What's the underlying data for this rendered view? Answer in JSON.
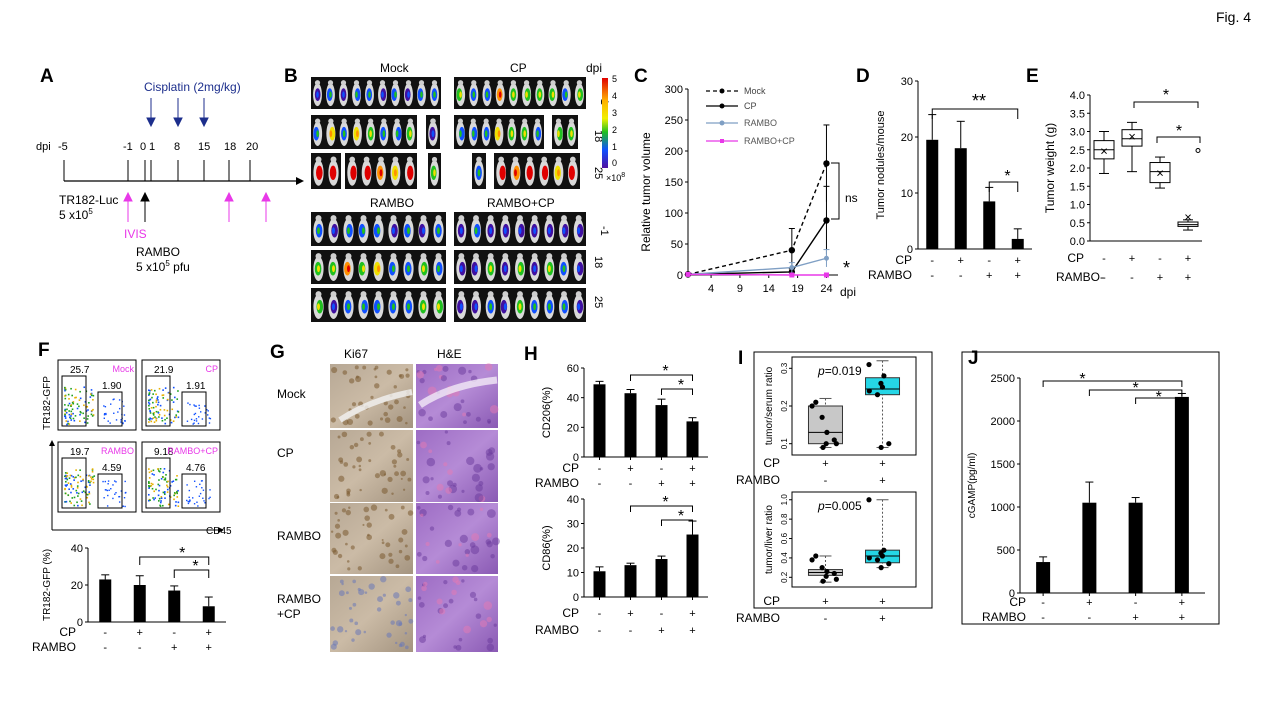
{
  "figure_label": "Fig. 4",
  "colors": {
    "magenta": "#e838e8",
    "navy": "#1c2e8c",
    "cyan": "#25d6e6",
    "gray_box": "#c8c8c8",
    "steel": "#7f9fc4"
  },
  "panelA": {
    "label": "A",
    "dpi_label": "dpi",
    "ticks": [
      "-5",
      "-1",
      "0",
      "1",
      "8",
      "15",
      "18",
      "20"
    ],
    "cisplatin": "Cisplatin (2mg/kg)",
    "tumor": "TR182-Luc",
    "tumor_dose": "5 x10",
    "tumor_dose_exp": "5",
    "ivis": "IVIS",
    "virus": "RAMBO",
    "virus_dose": "5 x10",
    "virus_dose_exp": "5",
    "virus_unit": " pfu"
  },
  "panelB": {
    "label": "B",
    "groups": [
      "Mock",
      "CP",
      "RAMBO",
      "RAMBO+CP"
    ],
    "dpi_label": "dpi",
    "row_days": [
      "-1",
      "18",
      "25"
    ],
    "scale_ticks": [
      "5",
      "4",
      "3",
      "2",
      "1",
      "0"
    ],
    "scale_unit": "×10",
    "scale_unit_exp": "8"
  },
  "panelC": {
    "label": "C",
    "chart_data": {
      "type": "line",
      "ylabel": "Relative tumor volume",
      "xlabel": "dpi",
      "x_ticks": [
        "4",
        "9",
        "14",
        "19",
        "24"
      ],
      "y_ticks": [
        "0",
        "50",
        "100",
        "150",
        "200",
        "250",
        "300"
      ],
      "ylim": [
        0,
        300
      ],
      "series": [
        {
          "name": "Mock",
          "x": [
            0,
            18,
            24
          ],
          "values": [
            1,
            40,
            180
          ],
          "err": [
            0,
            35,
            62
          ]
        },
        {
          "name": "CP",
          "x": [
            0,
            18,
            24
          ],
          "values": [
            1,
            5,
            88
          ],
          "err": [
            0,
            5,
            55
          ]
        },
        {
          "name": "RAMBO",
          "x": [
            0,
            18,
            24
          ],
          "values": [
            1,
            12,
            27
          ],
          "err": [
            0,
            8,
            14
          ]
        },
        {
          "name": "RAMBO+CP",
          "x": [
            0,
            18,
            24
          ],
          "values": [
            1,
            0,
            0
          ],
          "err": [
            0,
            0,
            0
          ]
        }
      ],
      "annotations": [
        "ns",
        "*"
      ]
    }
  },
  "panelD": {
    "label": "D",
    "chart_data": {
      "type": "bar",
      "ylabel": "Tumor nodules/mouse",
      "y_ticks": [
        "0",
        "10",
        "20",
        "30"
      ],
      "ylim": [
        0,
        30
      ],
      "values": [
        19.5,
        18,
        8.5,
        1.8
      ],
      "err": [
        4.5,
        4.8,
        2.5,
        1.8
      ],
      "cp_row": [
        "-",
        "+",
        "-",
        "+"
      ],
      "rambo_row": [
        "-",
        "-",
        "+",
        "+"
      ],
      "annotations": [
        "**",
        "*"
      ]
    }
  },
  "panelE": {
    "label": "E",
    "chart_data": {
      "type": "box",
      "ylabel": "Tumor weight (g)",
      "y_ticks": [
        "0.0",
        "0.5",
        "1.0",
        "1.5",
        "2.0",
        "2.5",
        "3.0",
        "3.5",
        "4.0"
      ],
      "ylim": [
        0,
        4
      ],
      "boxes": [
        {
          "min": 1.85,
          "q1": 2.25,
          "median": 2.5,
          "q3": 2.75,
          "max": 3.0,
          "mean": 2.45
        },
        {
          "min": 1.9,
          "q1": 2.6,
          "median": 2.8,
          "q3": 3.05,
          "max": 3.25,
          "mean": 2.85
        },
        {
          "min": 1.45,
          "q1": 1.6,
          "median": 1.9,
          "q3": 2.15,
          "max": 2.3,
          "mean": 1.85
        },
        {
          "min": 0.3,
          "q1": 0.4,
          "median": 0.45,
          "q3": 0.52,
          "max": 0.58,
          "mean": 0.65
        }
      ],
      "cp_row": [
        "-",
        "+",
        "-",
        "+"
      ],
      "rambo_row": [
        "-",
        "-",
        "+",
        "+"
      ],
      "annotations": [
        "*",
        "*"
      ]
    }
  },
  "labels": {
    "cp": "CP",
    "rambo": "RAMBO",
    "rambo_dash": "RAMBO-"
  },
  "panelF": {
    "label": "F",
    "flow": [
      {
        "tl": "25.7",
        "br": "1.90",
        "name": "Mock"
      },
      {
        "tl": "21.9",
        "br": "1.91",
        "name": "CP"
      },
      {
        "tl": "19.7",
        "br": "4.59",
        "name": "RAMBO"
      },
      {
        "tl": "9.18",
        "br": "4.76",
        "name": "RAMBO+CP"
      }
    ],
    "y_axis": "TR182-GFP",
    "x_axis": "CD45",
    "chart_data": {
      "type": "bar",
      "ylabel": "TR182-GFP (%)",
      "y_ticks": [
        "0",
        "20",
        "40"
      ],
      "ylim": [
        0,
        40
      ],
      "values": [
        23,
        20,
        17,
        8.5
      ],
      "err": [
        2.5,
        5,
        2.5,
        5
      ],
      "cp_row": [
        "-",
        "+",
        "-",
        "+"
      ],
      "rambo_row": [
        "-",
        "-",
        "+",
        "+"
      ],
      "annotations": [
        "*",
        "*"
      ]
    }
  },
  "panelG": {
    "label": "G",
    "cols": [
      "Ki67",
      "H&E"
    ],
    "rows": [
      "Mock",
      "CP",
      "RAMBO",
      "RAMBO",
      "+CP"
    ]
  },
  "panelH": {
    "label": "H",
    "chart_data": [
      {
        "type": "bar",
        "ylabel": "CD206(%)",
        "y_ticks": [
          "0",
          "20",
          "40",
          "60"
        ],
        "ylim": [
          0,
          60
        ],
        "values": [
          49,
          43,
          35,
          24
        ],
        "err": [
          2,
          2.5,
          4,
          2.5
        ],
        "cp_row": [
          "-",
          "+",
          "-",
          "+"
        ],
        "rambo_row": [
          "-",
          "-",
          "+",
          "+"
        ],
        "annotations": [
          "*",
          "*"
        ]
      },
      {
        "type": "bar",
        "ylabel": "CD86(%)",
        "y_ticks": [
          "0",
          "10",
          "20",
          "30",
          "40"
        ],
        "ylim": [
          0,
          40
        ],
        "values": [
          10.5,
          13,
          15.5,
          25.5
        ],
        "err": [
          1.8,
          0.8,
          1.2,
          5.5
        ],
        "cp_row": [
          "-",
          "+",
          "-",
          "+"
        ],
        "rambo_row": [
          "-",
          "-",
          "+",
          "+"
        ],
        "annotations": [
          "*",
          "*"
        ]
      }
    ]
  },
  "panelI": {
    "label": "I",
    "chart_data": [
      {
        "type": "box",
        "ylabel": "tumor/serum ratio",
        "p_value_prefix": "p",
        "p_value": "=0.019",
        "y_ticks": [
          "0.1",
          "0.2",
          "0.3"
        ],
        "ylim": [
          0.07,
          0.33
        ],
        "boxes": [
          {
            "min": 0.09,
            "q1": 0.1,
            "median": 0.13,
            "q3": 0.2,
            "max": 0.22
          },
          {
            "min": 0.09,
            "q1": 0.23,
            "median": 0.245,
            "q3": 0.275,
            "max": 0.32
          }
        ],
        "points": [
          [
            0.09,
            0.1,
            0.1,
            0.11,
            0.13,
            0.17,
            0.2,
            0.21
          ],
          [
            0.09,
            0.1,
            0.23,
            0.24,
            0.25,
            0.26,
            0.28,
            0.31
          ]
        ],
        "cp_row": [
          "+",
          "+"
        ],
        "rambo_row": [
          "-",
          "+"
        ]
      },
      {
        "type": "box",
        "ylabel": "tumor/liver ratio",
        "p_value_prefix": "p",
        "p_value": "=0.005",
        "y_ticks": [
          "0.2",
          "0.4",
          "0.6",
          "0.8",
          "1.0"
        ],
        "ylim": [
          0.1,
          1.08
        ],
        "boxes": [
          {
            "min": 0.15,
            "q1": 0.22,
            "median": 0.25,
            "q3": 0.28,
            "max": 0.42
          },
          {
            "min": 0.3,
            "q1": 0.35,
            "median": 0.42,
            "q3": 0.48,
            "max": 1.0
          }
        ],
        "points": [
          [
            0.16,
            0.18,
            0.21,
            0.24,
            0.26,
            0.3,
            0.38,
            0.42
          ],
          [
            0.3,
            0.34,
            0.38,
            0.4,
            0.42,
            0.45,
            0.48,
            1.0
          ]
        ],
        "cp_row": [
          "+",
          "+"
        ],
        "rambo_row": [
          "-",
          "+"
        ]
      }
    ]
  },
  "panelJ": {
    "label": "J",
    "chart_data": {
      "type": "bar",
      "ylabel": "cGAMP(pg/ml)",
      "y_ticks": [
        "0",
        "500",
        "1000",
        "1500",
        "2000",
        "2500"
      ],
      "ylim": [
        0,
        2500
      ],
      "values": [
        360,
        1050,
        1050,
        2280
      ],
      "err": [
        60,
        240,
        60,
        40
      ],
      "cp_row": [
        "-",
        "+",
        "-",
        "+"
      ],
      "rambo_row": [
        "-",
        "-",
        "+",
        "+"
      ],
      "annotations": [
        "*",
        "*",
        "*"
      ]
    }
  }
}
